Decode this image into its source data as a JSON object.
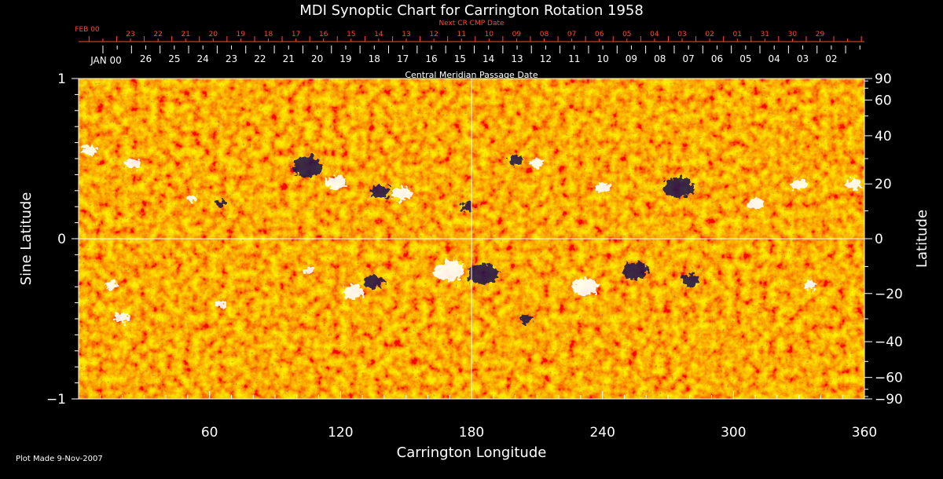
{
  "chart_data": {
    "type": "heatmap",
    "title": "MDI Synoptic Chart for Carrington Rotation 1958",
    "xlabel": "Carrington Longitude",
    "ylabel": "Sine Latitude",
    "y2label": "Latitude",
    "xlim": [
      0,
      360
    ],
    "ylim": [
      -1,
      1
    ],
    "x_ticks": [
      60,
      120,
      180,
      240,
      300,
      360
    ],
    "y_ticks": [
      -1,
      0,
      1
    ],
    "y_tick_labels": [
      "−1",
      "0",
      "1"
    ],
    "y2_ticks": [
      90,
      60,
      40,
      20,
      0,
      -20,
      -40,
      -60,
      -90
    ],
    "y2_tick_labels": [
      "90",
      "60",
      "40",
      "20",
      "0",
      "−20",
      "−40",
      "−60",
      "−90"
    ],
    "top_axis": {
      "label": "Central Meridian Passage Date",
      "month_label": "JAN 00",
      "dates": [
        "26",
        "25",
        "24",
        "23",
        "22",
        "21",
        "20",
        "19",
        "18",
        "17",
        "16",
        "15",
        "14",
        "13",
        "12",
        "11",
        "10",
        "09",
        "08",
        "07",
        "06",
        "05",
        "04",
        "03",
        "02"
      ]
    },
    "next_cr_axis": {
      "label": "Next CR CMP Date",
      "month_label": "FEB 00",
      "dates": [
        "23",
        "22",
        "21",
        "20",
        "19",
        "18",
        "17",
        "16",
        "15",
        "14",
        "13",
        "12",
        "11",
        "10",
        "09",
        "08",
        "07",
        "06",
        "05",
        "04",
        "03",
        "02",
        "01",
        "31",
        "30",
        "29"
      ]
    },
    "colors": {
      "background": "#000000",
      "text": "#ffffff",
      "next_cr": "#ff4a2e",
      "field": "#e84a10",
      "positive": "#ffffff",
      "negative": "#1a1050"
    },
    "active_regions": [
      {
        "lon": 5,
        "sinlat": 0.55,
        "polarity": "positive",
        "size": 0.6
      },
      {
        "lon": 25,
        "sinlat": 0.47,
        "polarity": "positive",
        "size": 0.6
      },
      {
        "lon": 52,
        "sinlat": 0.25,
        "polarity": "positive",
        "size": 0.4
      },
      {
        "lon": 65,
        "sinlat": 0.22,
        "polarity": "negative",
        "size": 0.4
      },
      {
        "lon": 105,
        "sinlat": 0.45,
        "polarity": "negative",
        "size": 1.2
      },
      {
        "lon": 118,
        "sinlat": 0.35,
        "polarity": "positive",
        "size": 0.8
      },
      {
        "lon": 138,
        "sinlat": 0.29,
        "polarity": "negative",
        "size": 0.8
      },
      {
        "lon": 148,
        "sinlat": 0.28,
        "polarity": "positive",
        "size": 0.8
      },
      {
        "lon": 178,
        "sinlat": 0.2,
        "polarity": "negative",
        "size": 0.5
      },
      {
        "lon": 200,
        "sinlat": 0.49,
        "polarity": "negative",
        "size": 0.5
      },
      {
        "lon": 210,
        "sinlat": 0.47,
        "polarity": "positive",
        "size": 0.5
      },
      {
        "lon": 240,
        "sinlat": 0.32,
        "polarity": "positive",
        "size": 0.6
      },
      {
        "lon": 275,
        "sinlat": 0.32,
        "polarity": "negative",
        "size": 1.2
      },
      {
        "lon": 310,
        "sinlat": 0.22,
        "polarity": "positive",
        "size": 0.6
      },
      {
        "lon": 330,
        "sinlat": 0.34,
        "polarity": "positive",
        "size": 0.6
      },
      {
        "lon": 355,
        "sinlat": 0.34,
        "polarity": "positive",
        "size": 0.6
      },
      {
        "lon": 15,
        "sinlat": -0.29,
        "polarity": "positive",
        "size": 0.5
      },
      {
        "lon": 20,
        "sinlat": -0.49,
        "polarity": "positive",
        "size": 0.6
      },
      {
        "lon": 65,
        "sinlat": -0.41,
        "polarity": "positive",
        "size": 0.4
      },
      {
        "lon": 105,
        "sinlat": -0.2,
        "polarity": "positive",
        "size": 0.4
      },
      {
        "lon": 126,
        "sinlat": -0.33,
        "polarity": "positive",
        "size": 0.8
      },
      {
        "lon": 135,
        "sinlat": -0.27,
        "polarity": "negative",
        "size": 0.8
      },
      {
        "lon": 170,
        "sinlat": -0.2,
        "polarity": "positive",
        "size": 1.2
      },
      {
        "lon": 185,
        "sinlat": -0.22,
        "polarity": "negative",
        "size": 1.2
      },
      {
        "lon": 205,
        "sinlat": -0.5,
        "polarity": "negative",
        "size": 0.5
      },
      {
        "lon": 232,
        "sinlat": -0.3,
        "polarity": "positive",
        "size": 1.0
      },
      {
        "lon": 255,
        "sinlat": -0.2,
        "polarity": "negative",
        "size": 1.0
      },
      {
        "lon": 280,
        "sinlat": -0.26,
        "polarity": "negative",
        "size": 0.7
      },
      {
        "lon": 335,
        "sinlat": -0.29,
        "polarity": "positive",
        "size": 0.5
      }
    ]
  },
  "footer": {
    "plot_made": "Plot Made  9-Nov-2007"
  }
}
